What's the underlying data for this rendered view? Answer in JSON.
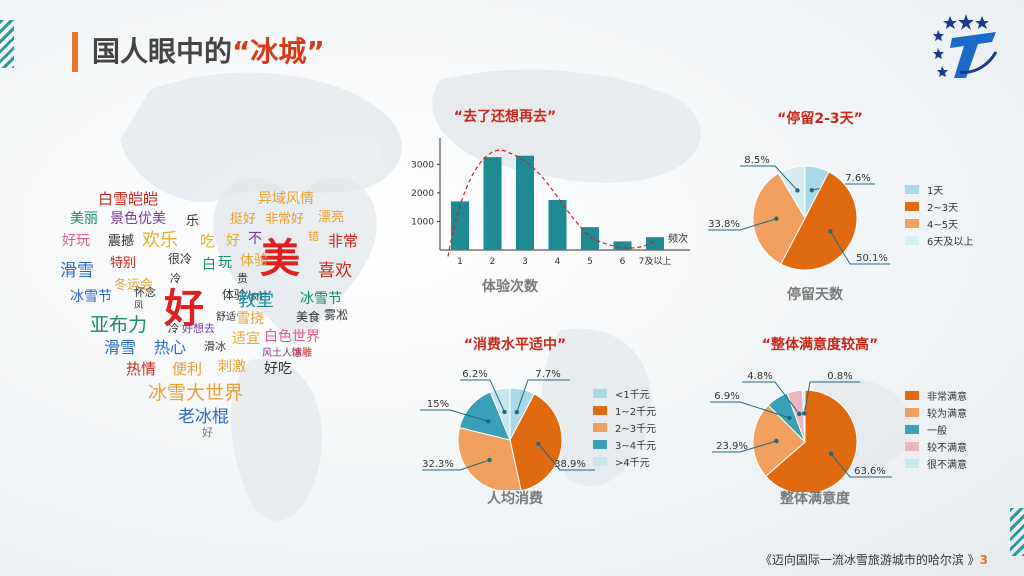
{
  "header": {
    "title_main": "国人眼中的",
    "title_quote": "“冰城”"
  },
  "footer": {
    "text": "《迈向国际一流冰雪旅游城市的哈尔滨 》",
    "page": "3"
  },
  "word_cloud": [
    {
      "t": "白雪皑皑",
      "c": "#c8281a"
    },
    {
      "t": "异域风情",
      "c": "#e8a030"
    },
    {
      "t": "美丽",
      "c": "#1a8a6a"
    },
    {
      "t": "景色优美",
      "c": "#7a3aa0"
    },
    {
      "t": "乐",
      "c": "#333333"
    },
    {
      "t": "挺好",
      "c": "#e8a030"
    },
    {
      "t": "非常好",
      "c": "#e8a030"
    },
    {
      "t": "漂亮",
      "c": "#e8a030"
    },
    {
      "t": "好玩",
      "c": "#e85a8a"
    },
    {
      "t": "震撼",
      "c": "#333333"
    },
    {
      "t": "欢乐",
      "c": "#e8b020"
    },
    {
      "t": "吃",
      "c": "#e8b020"
    },
    {
      "t": "好",
      "c": "#e8b020"
    },
    {
      "t": "不",
      "c": "#7a3aa0"
    },
    {
      "t": "美",
      "c": "#e02020"
    },
    {
      "t": "错",
      "c": "#e8a030"
    },
    {
      "t": "非常",
      "c": "#c8281a"
    },
    {
      "t": "滑雪",
      "c": "#2a6ac8"
    },
    {
      "t": "特别",
      "c": "#c8281a"
    },
    {
      "t": "很冷",
      "c": "#333333"
    },
    {
      "t": "体验",
      "c": "#e8a030"
    },
    {
      "t": "贵",
      "c": "#333333"
    },
    {
      "t": "喜欢",
      "c": "#c8281a"
    },
    {
      "t": "冬运会",
      "c": "#e8a030"
    },
    {
      "t": "冷",
      "c": "#333333"
    },
    {
      "t": "白",
      "c": "#1a8a6a"
    },
    {
      "t": "玩",
      "c": "#1a8a6a"
    },
    {
      "t": "冰雪节",
      "c": "#2a6ac8"
    },
    {
      "t": "怀念",
      "c": "#333333"
    },
    {
      "t": "凤",
      "c": "#333333"
    },
    {
      "t": "好",
      "c": "#e02020"
    },
    {
      "t": "体验",
      "c": "#333333"
    },
    {
      "t": "疯狂",
      "c": "#333333"
    },
    {
      "t": "教堂",
      "c": "#1a8aa0"
    },
    {
      "t": "冰雪节",
      "c": "#1a8a6a"
    },
    {
      "t": "亚布力",
      "c": "#1a8a6a"
    },
    {
      "t": "舒适",
      "c": "#333333"
    },
    {
      "t": "雪挠",
      "c": "#e8a030"
    },
    {
      "t": "美食",
      "c": "#333333"
    },
    {
      "t": "雾凇",
      "c": "#333333"
    },
    {
      "t": "冷",
      "c": "#333333"
    },
    {
      "t": "好想去",
      "c": "#7a3aa0"
    },
    {
      "t": "适宜",
      "c": "#e8b020"
    },
    {
      "t": "白色世界",
      "c": "#e85a8a"
    },
    {
      "t": "滑雪",
      "c": "#2a6ac8"
    },
    {
      "t": "热心",
      "c": "#2a6ac8"
    },
    {
      "t": "滑冰",
      "c": "#333333"
    },
    {
      "t": "风土人情",
      "c": "#7a3aa0"
    },
    {
      "t": "冰雕",
      "c": "#c8281a"
    },
    {
      "t": "热情",
      "c": "#c8281a"
    },
    {
      "t": "便利",
      "c": "#e8a030"
    },
    {
      "t": "刺激",
      "c": "#e8a030"
    },
    {
      "t": "好吃",
      "c": "#333333"
    },
    {
      "t": "冰雪大世界",
      "c": "#e8a030"
    },
    {
      "t": "老冰棍",
      "c": "#2a6ac8"
    },
    {
      "t": "好",
      "c": "#777777"
    }
  ],
  "chart_data": [
    {
      "type": "bar",
      "title": "“去了还想再去”",
      "xlabel": "体验次数",
      "x_unit": "频次",
      "categories": [
        "1",
        "2",
        "3",
        "4",
        "5",
        "6",
        "7及以上"
      ],
      "values": [
        1700,
        3250,
        3300,
        1750,
        800,
        300,
        450
      ],
      "yticks": [
        1000,
        2000,
        3000
      ],
      "ylim": [
        0,
        3500
      ],
      "bar_color": "#1e8a94",
      "trend_color": "#d42020"
    },
    {
      "type": "pie",
      "title": "“停留2-3天”",
      "xlabel": "停留天数",
      "labels": [
        "1天",
        "2~3天",
        "4~5天",
        "6天及以上"
      ],
      "values": [
        7.6,
        50.1,
        33.8,
        8.5
      ],
      "display": [
        "7.6%",
        "50.1%",
        "33.8%",
        "8.5%"
      ],
      "colors": [
        "#a9d8e6",
        "#e06a10",
        "#f2a060",
        "#d8ecf2"
      ]
    },
    {
      "type": "pie",
      "title": "“消费水平适中”",
      "xlabel": "人均消费",
      "labels": [
        "<1千元",
        "1~2千元",
        "2~3千元",
        "3~4千元",
        ">4千元"
      ],
      "values": [
        7.7,
        38.9,
        32.3,
        15,
        6.2
      ],
      "display": [
        "7.7%",
        "38.9%",
        "32.3%",
        "15%",
        "6.2%"
      ],
      "colors": [
        "#a9d8e6",
        "#e06a10",
        "#f2a060",
        "#3aa0b8",
        "#c8e6ee"
      ]
    },
    {
      "type": "pie",
      "title": "“整体满意度较高”",
      "xlabel": "整体满意度",
      "labels": [
        "非常满意",
        "较为满意",
        "一般",
        "较不满意",
        "很不满意"
      ],
      "values": [
        63.6,
        23.9,
        6.9,
        4.8,
        0.8
      ],
      "display": [
        "63.6%",
        "23.9%",
        "6.9%",
        "4.8%",
        "0.8%"
      ],
      "colors": [
        "#e06a10",
        "#f2a060",
        "#3aa0b8",
        "#e8b8c0",
        "#c8e6ee"
      ]
    }
  ]
}
